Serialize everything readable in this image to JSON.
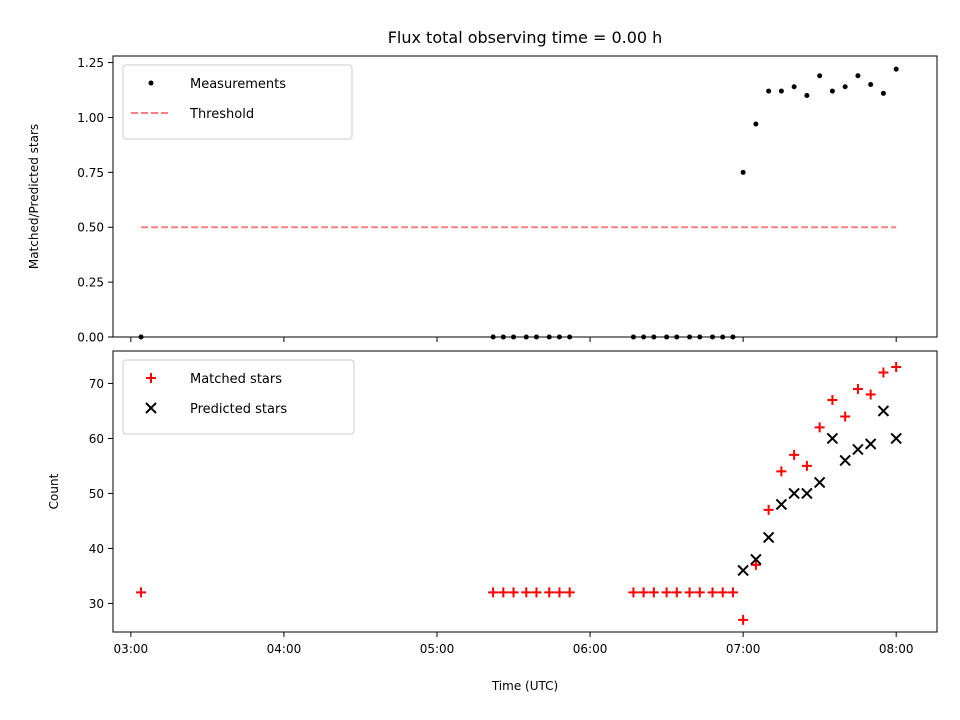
{
  "chart_data": [
    {
      "type": "scatter",
      "title": "Flux total observing time = 0.00 h",
      "ylabel": "Matched/Predicted stars",
      "xlabel": "",
      "xlim": [
        "02:53",
        "08:16"
      ],
      "ylim": [
        0,
        1.28
      ],
      "xticks": [
        "03:00",
        "04:00",
        "05:00",
        "06:00",
        "07:00",
        "08:00"
      ],
      "yticks": [
        "0.00",
        "0.25",
        "0.50",
        "0.75",
        "1.00",
        "1.25"
      ],
      "xtick_labels_visible": false,
      "legend_position": "upper left",
      "series": [
        {
          "name": "Measurements",
          "marker": "dot",
          "color": "#000000",
          "x": [
            "03:04",
            "05:22",
            "05:26",
            "05:30",
            "05:35",
            "05:39",
            "05:44",
            "05:48",
            "05:52",
            "06:17",
            "06:21",
            "06:25",
            "06:30",
            "06:34",
            "06:39",
            "06:43",
            "06:48",
            "06:52",
            "06:56",
            "07:00",
            "07:05",
            "07:10",
            "07:15",
            "07:20",
            "07:25",
            "07:30",
            "07:35",
            "07:40",
            "07:45",
            "07:50",
            "07:55",
            "08:00"
          ],
          "y": [
            0,
            0,
            0,
            0,
            0,
            0,
            0,
            0,
            0,
            0,
            0,
            0,
            0,
            0,
            0,
            0,
            0,
            0,
            0,
            0.75,
            0.97,
            1.12,
            1.12,
            1.14,
            1.1,
            1.19,
            1.12,
            1.14,
            1.19,
            1.15,
            1.11,
            1.22
          ]
        },
        {
          "name": "Threshold",
          "marker": "dashed-line",
          "color": "#ff8080",
          "x": [
            "03:04",
            "08:00"
          ],
          "y": [
            0.5,
            0.5
          ]
        }
      ]
    },
    {
      "type": "scatter",
      "title": "",
      "ylabel": "Count",
      "xlabel": "Time (UTC)",
      "xlim": [
        "02:53",
        "08:16"
      ],
      "ylim": [
        24.8,
        75.9
      ],
      "xticks": [
        "03:00",
        "04:00",
        "05:00",
        "06:00",
        "07:00",
        "08:00"
      ],
      "yticks": [
        "30",
        "40",
        "50",
        "60",
        "70"
      ],
      "xtick_labels_visible": true,
      "legend_position": "upper left",
      "series": [
        {
          "name": "Matched stars",
          "marker": "plus",
          "color": "#ff0000",
          "x": [
            "03:04",
            "05:22",
            "05:26",
            "05:30",
            "05:35",
            "05:39",
            "05:44",
            "05:48",
            "05:52",
            "06:17",
            "06:21",
            "06:25",
            "06:30",
            "06:34",
            "06:39",
            "06:43",
            "06:48",
            "06:52",
            "06:56",
            "07:00",
            "07:05",
            "07:10",
            "07:15",
            "07:20",
            "07:25",
            "07:30",
            "07:35",
            "07:40",
            "07:45",
            "07:50",
            "07:55",
            "08:00"
          ],
          "y": [
            32,
            32,
            32,
            32,
            32,
            32,
            32,
            32,
            32,
            32,
            32,
            32,
            32,
            32,
            32,
            32,
            32,
            32,
            32,
            27,
            37,
            47,
            54,
            57,
            55,
            62,
            67,
            64,
            69,
            68,
            72,
            73
          ]
        },
        {
          "name": "Predicted stars",
          "marker": "x",
          "color": "#000000",
          "x": [
            "07:00",
            "07:05",
            "07:10",
            "07:15",
            "07:20",
            "07:25",
            "07:30",
            "07:35",
            "07:40",
            "07:45",
            "07:50",
            "07:55",
            "08:00"
          ],
          "y": [
            36,
            38,
            42,
            48,
            50,
            50,
            52,
            60,
            56,
            58,
            59,
            65,
            60
          ]
        }
      ]
    }
  ]
}
